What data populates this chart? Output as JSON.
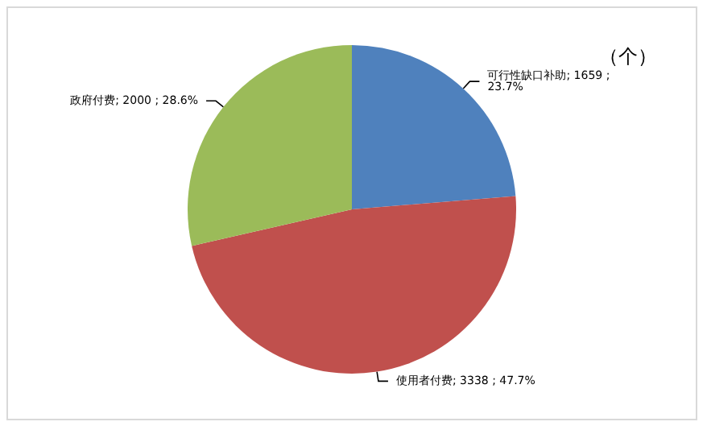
{
  "chart_data": {
    "type": "pie",
    "categories": [
      "可行性缺口补助",
      "使用者付费",
      "政府付费"
    ],
    "values": [
      1659,
      3338,
      2000
    ],
    "colors": [
      "#4f81bd",
      "#c0504d",
      "#9bbb59"
    ],
    "value_labels": [
      "1659 ; 23.7%",
      "3338 ; 47.7%",
      "2000 ; 28.6%"
    ],
    "annotations": [
      "（个）"
    ],
    "legend": false
  }
}
